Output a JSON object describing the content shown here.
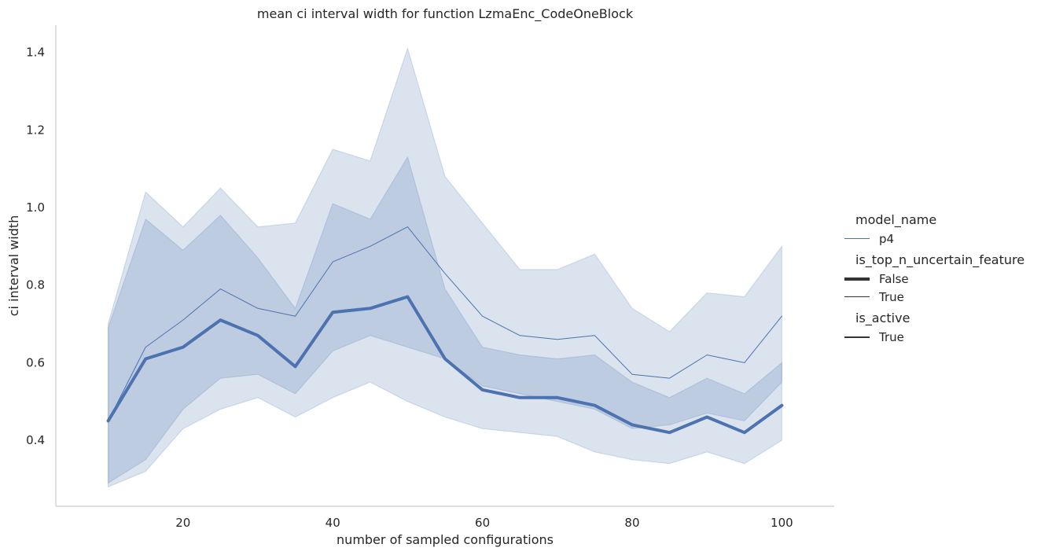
{
  "chart_data": {
    "type": "line",
    "title": "mean ci interval width for function LzmaEnc_CodeOneBlock",
    "xlabel": "number of sampled configurations",
    "ylabel": "ci interval width",
    "xlim": [
      3,
      107
    ],
    "ylim": [
      0.23,
      1.47
    ],
    "xticks": [
      20,
      40,
      60,
      80,
      100
    ],
    "yticks": [
      0.4,
      0.6,
      0.8,
      1.0,
      1.2,
      1.4
    ],
    "grid": false,
    "legend_position": "right",
    "color": "#4c72b0",
    "x": [
      10,
      15,
      20,
      25,
      30,
      35,
      40,
      45,
      50,
      55,
      60,
      65,
      70,
      75,
      80,
      85,
      90,
      95,
      100
    ],
    "series": [
      {
        "name": "False",
        "linewidth": "thick",
        "values": [
          0.45,
          0.61,
          0.64,
          0.71,
          0.67,
          0.59,
          0.73,
          0.74,
          0.77,
          0.61,
          0.53,
          0.51,
          0.51,
          0.49,
          0.44,
          0.42,
          0.46,
          0.42,
          0.49
        ],
        "ci_upper": [
          0.69,
          0.97,
          0.89,
          0.98,
          0.87,
          0.74,
          1.01,
          0.97,
          1.13,
          0.79,
          0.64,
          0.62,
          0.61,
          0.62,
          0.55,
          0.51,
          0.56,
          0.52,
          0.6
        ],
        "ci_lower": [
          0.28,
          0.32,
          0.43,
          0.48,
          0.51,
          0.46,
          0.51,
          0.55,
          0.5,
          0.46,
          0.43,
          0.42,
          0.41,
          0.37,
          0.35,
          0.34,
          0.37,
          0.34,
          0.4
        ]
      },
      {
        "name": "True",
        "linewidth": "thin",
        "values": [
          0.45,
          0.64,
          0.71,
          0.79,
          0.74,
          0.72,
          0.86,
          0.9,
          0.95,
          0.83,
          0.72,
          0.67,
          0.66,
          0.67,
          0.57,
          0.56,
          0.62,
          0.6,
          0.72
        ],
        "ci_upper": [
          0.7,
          1.04,
          0.95,
          1.05,
          0.95,
          0.96,
          1.15,
          1.12,
          1.41,
          1.08,
          0.96,
          0.84,
          0.84,
          0.88,
          0.74,
          0.68,
          0.78,
          0.77,
          0.9
        ],
        "ci_lower": [
          0.29,
          0.35,
          0.48,
          0.56,
          0.57,
          0.52,
          0.63,
          0.67,
          0.64,
          0.61,
          0.54,
          0.52,
          0.5,
          0.48,
          0.43,
          0.44,
          0.47,
          0.45,
          0.55
        ]
      }
    ],
    "legend": {
      "model_name_title": "model_name",
      "model_name_entry": "p4",
      "top_n_title": "is_top_n_uncertain_feature",
      "top_n_false": "False",
      "top_n_true": "True",
      "is_active_title": "is_active",
      "is_active_entry": "True"
    }
  }
}
